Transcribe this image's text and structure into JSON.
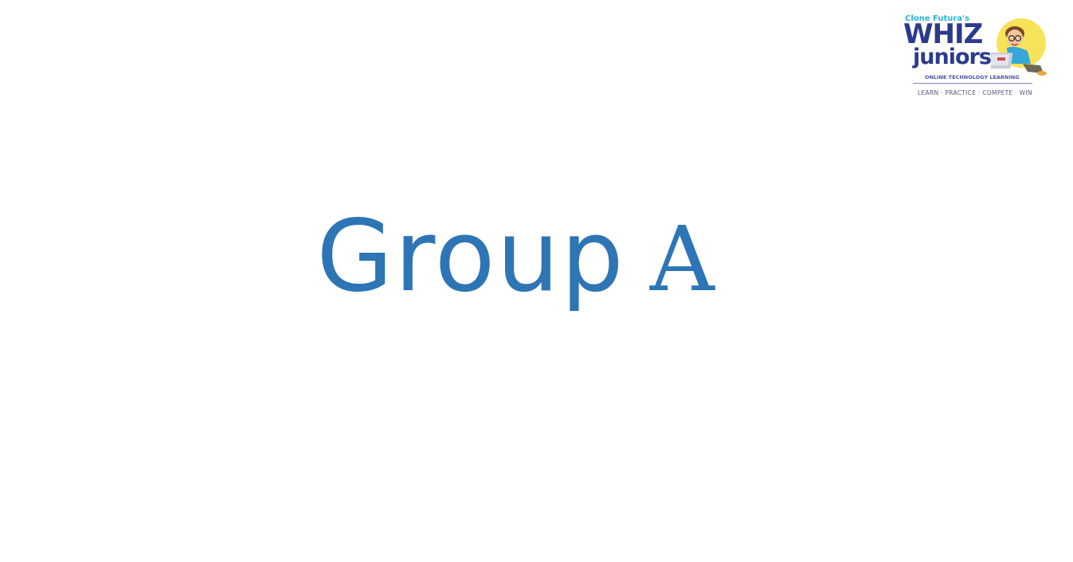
{
  "logo": {
    "top_text": "Clone Futura's",
    "whiz": "WHIZ",
    "juniors": "juniors",
    "subtitle": "ONLINE TECHNOLOGY LEARNING",
    "tagline": "LEARN · PRACTICE · COMPETE · WIN",
    "mascot_icon": "boy-with-laptop-icon",
    "colors": {
      "primary": "#2c3a8c",
      "accent": "#2bb3d4",
      "sun": "#f7e35a"
    }
  },
  "slide": {
    "title_word": "Group",
    "title_letter": "A",
    "title_color": "#2e75b6"
  }
}
